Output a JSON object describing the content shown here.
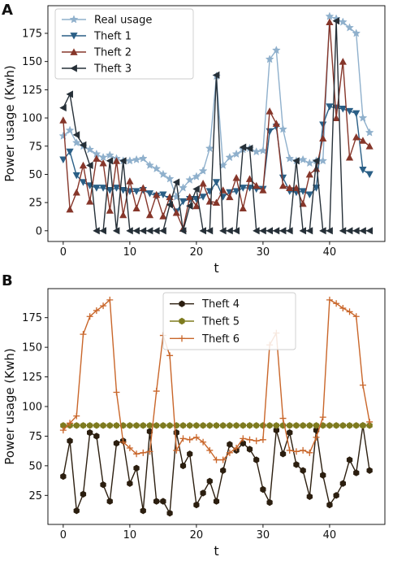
{
  "figure": {
    "panels": [
      "A",
      "B"
    ]
  },
  "colors": {
    "real_usage": "#8fb0cc",
    "theft_1": "#2a5f86",
    "theft_2": "#86362a",
    "theft_3": "#263038",
    "theft_4": "#2b1e0f",
    "theft_5": "#7e7b1f",
    "theft_6": "#c9662a"
  },
  "chart_data": [
    {
      "panel": "A",
      "type": "line",
      "xlabel": "t",
      "ylabel": "Power usage (Kwh)",
      "xlim": [
        -2.3,
        48.3
      ],
      "ylim": [
        -9.5,
        199.5
      ],
      "xticks": [
        0,
        10,
        20,
        30,
        40
      ],
      "yticks": [
        0,
        25,
        50,
        75,
        100,
        125,
        150,
        175
      ],
      "grid": false,
      "legend_position": "top-left",
      "x": [
        0,
        1,
        2,
        3,
        4,
        5,
        6,
        7,
        8,
        9,
        10,
        11,
        12,
        13,
        14,
        15,
        16,
        17,
        18,
        19,
        20,
        21,
        22,
        23,
        24,
        25,
        26,
        27,
        28,
        29,
        30,
        31,
        32,
        33,
        34,
        35,
        36,
        37,
        38,
        39,
        40,
        41,
        42,
        43,
        44,
        45,
        46
      ],
      "series": [
        {
          "name": "Real usage",
          "marker": "star",
          "color": "#8fb0cc",
          "values": [
            84,
            89,
            78,
            75,
            72,
            68,
            65,
            67,
            64,
            62,
            62,
            63,
            64,
            58,
            55,
            50,
            46,
            30,
            38,
            45,
            48,
            53,
            73,
            137,
            58,
            65,
            68,
            72,
            73,
            70,
            71,
            152,
            160,
            90,
            64,
            62,
            63,
            60,
            62,
            62,
            190,
            188,
            185,
            180,
            175,
            100,
            87
          ]
        },
        {
          "name": "Theft 1",
          "marker": "triangle_down",
          "color": "#2a5f86",
          "values": [
            63,
            70,
            49,
            43,
            40,
            38,
            38,
            36,
            38,
            36,
            35,
            35,
            36,
            33,
            31,
            32,
            28,
            17,
            26,
            28,
            28,
            30,
            35,
            43,
            30,
            34,
            35,
            38,
            38,
            37,
            37,
            88,
            92,
            47,
            35,
            34,
            35,
            32,
            38,
            94,
            110,
            109,
            108,
            106,
            104,
            54,
            50
          ]
        },
        {
          "name": "Theft 2",
          "marker": "triangle_up",
          "color": "#86362a",
          "values": [
            98,
            19,
            34,
            58,
            26,
            64,
            60,
            18,
            62,
            14,
            44,
            20,
            38,
            14,
            32,
            13,
            30,
            16,
            2,
            30,
            22,
            42,
            26,
            25,
            36,
            30,
            47,
            20,
            46,
            40,
            36,
            106,
            95,
            40,
            38,
            38,
            24,
            50,
            55,
            82,
            185,
            100,
            150,
            65,
            83,
            80,
            75
          ]
        },
        {
          "name": "Theft 3",
          "marker": "triangle_left",
          "color": "#263038",
          "values": [
            109,
            121,
            85,
            76,
            58,
            0,
            0,
            62,
            0,
            62,
            0,
            0,
            0,
            0,
            0,
            0,
            23,
            43,
            0,
            22,
            37,
            0,
            0,
            138,
            0,
            0,
            0,
            74,
            73,
            0,
            0,
            0,
            0,
            0,
            0,
            62,
            0,
            0,
            62,
            0,
            0,
            186,
            0,
            0,
            0,
            0,
            0
          ]
        }
      ]
    },
    {
      "panel": "B",
      "type": "line",
      "xlabel": "t",
      "ylabel": "Power usage (Kwh)",
      "xlim": [
        -2.3,
        48.3
      ],
      "ylim": [
        0.5,
        199.5
      ],
      "xticks": [
        0,
        10,
        20,
        30,
        40
      ],
      "yticks": [
        25,
        50,
        75,
        100,
        125,
        150,
        175
      ],
      "grid": false,
      "legend_position": "top-center",
      "x": [
        0,
        1,
        2,
        3,
        4,
        5,
        6,
        7,
        8,
        9,
        10,
        11,
        12,
        13,
        14,
        15,
        16,
        17,
        18,
        19,
        20,
        21,
        22,
        23,
        24,
        25,
        26,
        27,
        28,
        29,
        30,
        31,
        32,
        33,
        34,
        35,
        36,
        37,
        38,
        39,
        40,
        41,
        42,
        43,
        44,
        45,
        46
      ],
      "series": [
        {
          "name": "Theft 4",
          "marker": "hexagon",
          "color": "#2b1e0f",
          "values": [
            41,
            71,
            12,
            26,
            78,
            75,
            34,
            20,
            69,
            71,
            35,
            48,
            12,
            79,
            20,
            20,
            10,
            78,
            50,
            60,
            17,
            27,
            37,
            20,
            46,
            68,
            63,
            69,
            64,
            55,
            30,
            19,
            80,
            60,
            78,
            51,
            46,
            24,
            80,
            42,
            17,
            25,
            35,
            55,
            44,
            84,
            46
          ]
        },
        {
          "name": "Theft 5",
          "marker": "hexagon",
          "color": "#7e7b1f",
          "values": [
            84,
            84,
            84,
            84,
            84,
            84,
            84,
            84,
            84,
            84,
            84,
            84,
            84,
            84,
            84,
            84,
            84,
            84,
            84,
            84,
            84,
            84,
            84,
            84,
            84,
            84,
            84,
            84,
            84,
            84,
            84,
            84,
            84,
            84,
            84,
            84,
            84,
            84,
            84,
            84,
            84,
            84,
            84,
            84,
            84,
            84,
            84
          ]
        },
        {
          "name": "Theft 6",
          "marker": "plus",
          "color": "#c9662a",
          "values": [
            80,
            86,
            92,
            161,
            176,
            181,
            185,
            190,
            112,
            70,
            65,
            60,
            61,
            62,
            113,
            160,
            143,
            63,
            73,
            72,
            74,
            70,
            63,
            55,
            55,
            61,
            65,
            73,
            72,
            71,
            72,
            152,
            162,
            90,
            63,
            62,
            63,
            61,
            74,
            91,
            190,
            187,
            183,
            180,
            176,
            118,
            87
          ]
        }
      ]
    }
  ]
}
